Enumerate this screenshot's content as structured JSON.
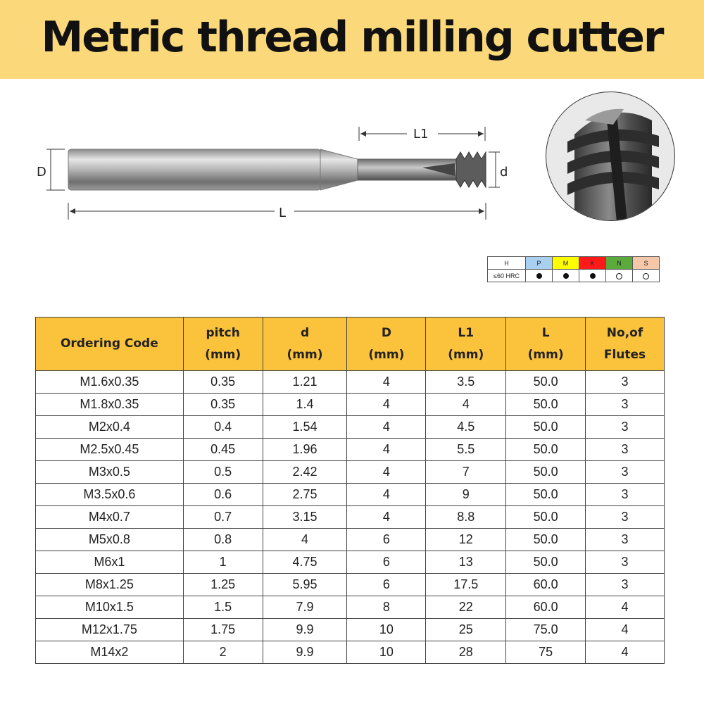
{
  "title": "Metric thread milling cutter",
  "diagram": {
    "label_D": "D",
    "label_d": "d",
    "label_L": "L",
    "label_L1": "L1"
  },
  "hardness": {
    "materials": [
      {
        "code": "H",
        "color": "#ffffff"
      },
      {
        "code": "P",
        "color": "#a9d0f0"
      },
      {
        "code": "M",
        "color": "#ffff00"
      },
      {
        "code": "K",
        "color": "#ff1a1a"
      },
      {
        "code": "N",
        "color": "#5aaa3c"
      },
      {
        "code": "S",
        "color": "#f6c7a8"
      }
    ],
    "row_label": "≤60 HRC",
    "suitability": [
      "filled",
      "filled",
      "filled",
      "outline",
      "outline"
    ]
  },
  "table": {
    "headers": [
      [
        "Ordering Code"
      ],
      [
        "pitch",
        "(mm)"
      ],
      [
        "d",
        "(mm)"
      ],
      [
        "D",
        "(mm)"
      ],
      [
        "L1",
        "(mm)"
      ],
      [
        "L",
        "(mm)"
      ],
      [
        "No,of",
        "Flutes"
      ]
    ],
    "rows": [
      [
        "M1.6x0.35",
        "0.35",
        "1.21",
        "4",
        "3.5",
        "50.0",
        "3"
      ],
      [
        "M1.8x0.35",
        "0.35",
        "1.4",
        "4",
        "4",
        "50.0",
        "3"
      ],
      [
        "M2x0.4",
        "0.4",
        "1.54",
        "4",
        "4.5",
        "50.0",
        "3"
      ],
      [
        "M2.5x0.45",
        "0.45",
        "1.96",
        "4",
        "5.5",
        "50.0",
        "3"
      ],
      [
        "M3x0.5",
        "0.5",
        "2.42",
        "4",
        "7",
        "50.0",
        "3"
      ],
      [
        "M3.5x0.6",
        "0.6",
        "2.75",
        "4",
        "9",
        "50.0",
        "3"
      ],
      [
        "M4x0.7",
        "0.7",
        "3.15",
        "4",
        "8.8",
        "50.0",
        "3"
      ],
      [
        "M5x0.8",
        "0.8",
        "4",
        "6",
        "12",
        "50.0",
        "3"
      ],
      [
        "M6x1",
        "1",
        "4.75",
        "6",
        "13",
        "50.0",
        "3"
      ],
      [
        "M8x1.25",
        "1.25",
        "5.95",
        "6",
        "17.5",
        "60.0",
        "3"
      ],
      [
        "M10x1.5",
        "1.5",
        "7.9",
        "8",
        "22",
        "60.0",
        "4"
      ],
      [
        "M12x1.75",
        "1.75",
        "9.9",
        "10",
        "25",
        "75.0",
        "4"
      ],
      [
        "M14x2",
        "2",
        "9.9",
        "10",
        "28",
        "75",
        "4"
      ]
    ]
  }
}
